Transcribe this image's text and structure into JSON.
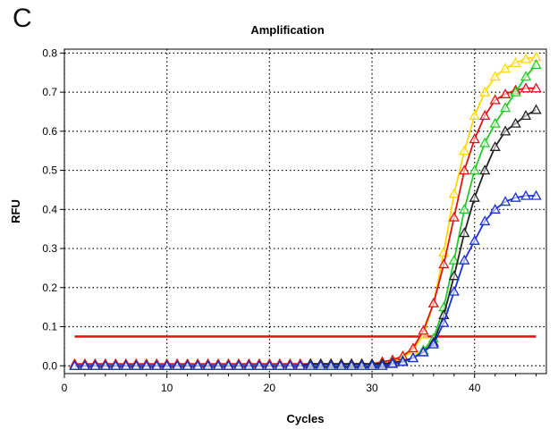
{
  "panel_label": "C",
  "colors": {
    "threshold": "#e01010",
    "yellow": "#ffd800",
    "red": "#e81010",
    "green": "#22cc22",
    "black": "#222222",
    "blue": "#1a2fe0",
    "frame": "#000000"
  },
  "chart_data": {
    "type": "line",
    "title": "Amplification",
    "xlabel": "Cycles",
    "ylabel": "RFU",
    "xlim": [
      0,
      47
    ],
    "ylim": [
      -0.02,
      0.81
    ],
    "xticks": [
      0,
      10,
      20,
      30,
      40
    ],
    "yticks": [
      0.0,
      0.1,
      0.2,
      0.3,
      0.4,
      0.5,
      0.6,
      0.7,
      0.8
    ],
    "grid": true,
    "markers": "open-triangle",
    "threshold": 0.075,
    "threshold_range": [
      1,
      46
    ],
    "x": [
      1,
      2,
      3,
      4,
      5,
      6,
      7,
      8,
      9,
      10,
      11,
      12,
      13,
      14,
      15,
      16,
      17,
      18,
      19,
      20,
      21,
      22,
      23,
      24,
      25,
      26,
      27,
      28,
      29,
      30,
      31,
      32,
      33,
      34,
      35,
      36,
      37,
      38,
      39,
      40,
      41,
      42,
      43,
      44,
      45,
      46
    ],
    "series": [
      {
        "color_key": "yellow",
        "values": [
          0,
          0,
          0,
          0,
          0,
          0,
          0,
          0,
          0,
          0,
          0,
          0,
          0,
          0,
          0,
          0,
          0,
          0,
          0,
          0,
          0,
          0,
          0,
          0,
          0,
          0,
          0,
          0,
          0,
          0,
          0.005,
          0.01,
          0.02,
          0.04,
          0.08,
          0.16,
          0.29,
          0.44,
          0.55,
          0.64,
          0.7,
          0.74,
          0.76,
          0.775,
          0.785,
          0.79
        ]
      },
      {
        "color_key": "red",
        "values": [
          0.005,
          0.005,
          0.005,
          0.005,
          0.005,
          0.005,
          0.005,
          0.005,
          0.005,
          0.005,
          0.005,
          0.005,
          0.005,
          0.005,
          0.005,
          0.005,
          0.005,
          0.005,
          0.005,
          0.005,
          0.005,
          0.005,
          0.005,
          0.005,
          0.005,
          0.005,
          0.005,
          0.005,
          0.005,
          0.005,
          0.01,
          0.015,
          0.025,
          0.045,
          0.09,
          0.16,
          0.26,
          0.38,
          0.5,
          0.58,
          0.64,
          0.68,
          0.695,
          0.705,
          0.71,
          0.71
        ]
      },
      {
        "color_key": "green",
        "values": [
          0,
          0,
          0,
          0,
          0,
          0,
          0,
          0,
          0,
          0,
          0,
          0,
          0,
          0,
          0,
          0,
          0,
          0,
          0,
          0,
          0,
          0,
          0,
          0,
          0,
          0,
          0,
          0,
          0,
          0,
          0.005,
          0.008,
          0.012,
          0.02,
          0.04,
          0.07,
          0.15,
          0.27,
          0.4,
          0.5,
          0.57,
          0.62,
          0.66,
          0.7,
          0.74,
          0.77
        ]
      },
      {
        "color_key": "black",
        "values": [
          0,
          0,
          0,
          0,
          0,
          0,
          0,
          0,
          0,
          0,
          0,
          0,
          0,
          0,
          0,
          0,
          0,
          0,
          0,
          0,
          0,
          0,
          0,
          0.005,
          0.005,
          0.005,
          0.005,
          0.005,
          0.005,
          0.005,
          0.005,
          0.008,
          0.012,
          0.02,
          0.035,
          0.06,
          0.13,
          0.23,
          0.34,
          0.43,
          0.5,
          0.56,
          0.6,
          0.62,
          0.64,
          0.655
        ]
      },
      {
        "color_key": "blue",
        "values": [
          0,
          0,
          0,
          0,
          0,
          0,
          0,
          0,
          0,
          0,
          0,
          0,
          0,
          0,
          0,
          0,
          0,
          0,
          0,
          0,
          0,
          0,
          0,
          0,
          0,
          0,
          0,
          0,
          0,
          0,
          0,
          0.005,
          0.01,
          0.02,
          0.035,
          0.055,
          0.11,
          0.19,
          0.27,
          0.32,
          0.37,
          0.4,
          0.42,
          0.43,
          0.435,
          0.435
        ]
      }
    ]
  }
}
